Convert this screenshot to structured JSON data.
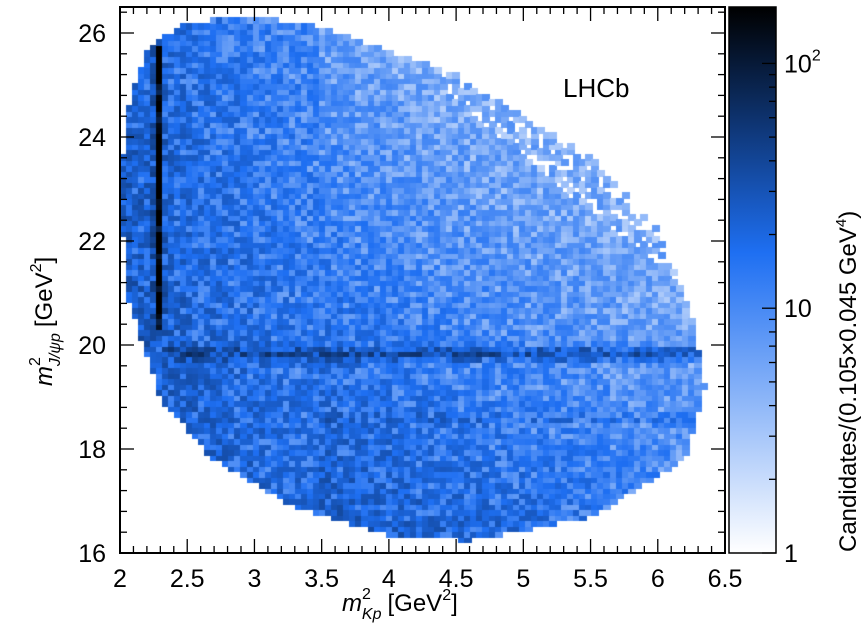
{
  "chart_data": {
    "type": "heatmap",
    "title": "",
    "annotation": "LHCb",
    "xlabel": {
      "symbol": "m",
      "superscript": "2",
      "subscript": "Kp",
      "unit_prefix": "[GeV",
      "unit_power": "2",
      "unit_suffix": "]"
    },
    "ylabel": {
      "symbol": "m",
      "superscript": "2",
      "subscript": "J/ψp",
      "unit_prefix": "[GeV",
      "unit_power": "2",
      "unit_suffix": "]"
    },
    "xlim": [
      2.0,
      6.5
    ],
    "ylim": [
      16.0,
      26.5
    ],
    "x_ticks": [
      2,
      2.5,
      3,
      3.5,
      4,
      4.5,
      5,
      5.5,
      6,
      6.5
    ],
    "x_tick_labels": [
      "2",
      "2.5",
      "3",
      "3.5",
      "4",
      "4.5",
      "5",
      "5.5",
      "6",
      "6.5"
    ],
    "y_ticks": [
      16,
      18,
      20,
      22,
      24,
      26
    ],
    "y_tick_labels": [
      "16",
      "18",
      "20",
      "22",
      "24",
      "26"
    ],
    "grid": false,
    "colorbar": {
      "label": "Candidates/(0.105×0.045 GeV",
      "label_power": "4",
      "label_suffix": ")",
      "scale": "log",
      "range": [
        1,
        170
      ],
      "major_ticks": [
        1,
        10,
        100
      ],
      "tick_labels": [
        {
          "value": 1,
          "base": "1",
          "exp": ""
        },
        {
          "value": 10,
          "base": "10",
          "exp": ""
        },
        {
          "value": 100,
          "base": "10",
          "exp": "2"
        }
      ],
      "colors": [
        "#ffffff",
        "#1e6ff2",
        "#000000"
      ]
    },
    "bin_size": {
      "x": 0.045,
      "y": 0.105
    },
    "region": {
      "description_points": [
        [
          2.05,
          24.5
        ],
        [
          2.2,
          25.7
        ],
        [
          2.5,
          26.2
        ],
        [
          3.0,
          26.3
        ],
        [
          3.5,
          26.1
        ],
        [
          4.5,
          25.2
        ],
        [
          5.5,
          23.6
        ],
        [
          6.0,
          22.2
        ],
        [
          6.25,
          20.6
        ],
        [
          6.35,
          19.2
        ],
        [
          6.2,
          17.8
        ],
        [
          5.5,
          16.7
        ],
        [
          4.6,
          16.25
        ],
        [
          4.0,
          16.35
        ],
        [
          3.3,
          16.9
        ],
        [
          2.7,
          17.8
        ],
        [
          2.3,
          19.0
        ],
        [
          2.05,
          21.0
        ],
        [
          2.0,
          23.0
        ]
      ]
    },
    "features": [
      {
        "kind": "vertical_band",
        "x": 2.29,
        "y_range": [
          20.3,
          25.8
        ],
        "peak_counts": 170
      },
      {
        "kind": "horizontal_band",
        "y": 19.85,
        "x_range": [
          2.3,
          6.3
        ],
        "peak_counts": 25
      },
      {
        "kind": "low_mass_enhancement",
        "x_range": [
          2.0,
          3.6
        ],
        "peak_counts": 40
      },
      {
        "kind": "horizontal_band_faint",
        "y": 18.6,
        "x_range": [
          3.5,
          6.3
        ],
        "peak_counts": 14
      }
    ],
    "typical_counts": {
      "dense_region": 20,
      "sparse_region": 3
    }
  }
}
